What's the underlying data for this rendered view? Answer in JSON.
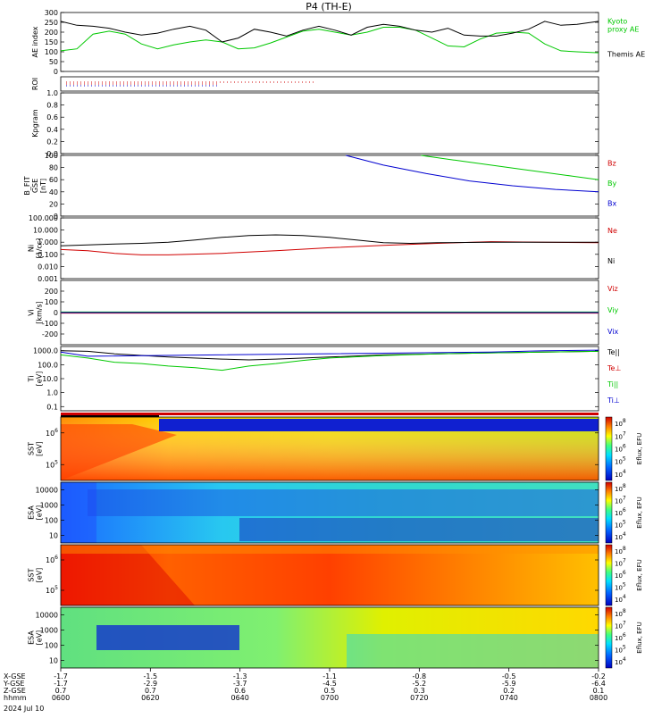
{
  "title": "P4 (TH-E)",
  "date": "2024 Jul 10",
  "colorbar_unit": "Eflux, EFU",
  "chart_data": {
    "type": "line",
    "x_time_ticks": [
      "0600",
      "0620",
      "0640",
      "0700",
      "0720",
      "0740",
      "0800"
    ],
    "ephemeris": {
      "labels": [
        "X-GSE",
        "Y-GSE",
        "Z-GSE",
        "hhmm"
      ],
      "x_gse": [
        "-1.7",
        "-1.5",
        "-1.3",
        "-1.1",
        "-0.8",
        "-0.5",
        "-0.2"
      ],
      "y_gse": [
        "-1.7",
        "-2.9",
        "-3.7",
        "-4.5",
        "-5.2",
        "-5.9",
        "-6.4"
      ],
      "z_gse": [
        "0.7",
        "0.7",
        "0.6",
        "0.5",
        "0.3",
        "0.2",
        "0.1"
      ]
    },
    "panels": [
      {
        "id": "ae",
        "ylabel": "AE index",
        "ylim": [
          0,
          300
        ],
        "ticks": [
          "0",
          "50",
          "100",
          "150",
          "200",
          "250",
          "300"
        ],
        "series": [
          {
            "name": "Kyoto proxy AE",
            "name_lines": [
              "Kyoto",
              "proxy AE"
            ],
            "color": "#00c800",
            "t": [
              0,
              0.03,
              0.06,
              0.09,
              0.12,
              0.15,
              0.18,
              0.21,
              0.24,
              0.27,
              0.3,
              0.33,
              0.36,
              0.39,
              0.42,
              0.45,
              0.48,
              0.51,
              0.54,
              0.57,
              0.6,
              0.63,
              0.66,
              0.69,
              0.72,
              0.75,
              0.78,
              0.81,
              0.84,
              0.87,
              0.9,
              0.93,
              0.96,
              1.0
            ],
            "v": [
              105,
              115,
              190,
              205,
              190,
              140,
              115,
              135,
              150,
              160,
              150,
              115,
              120,
              145,
              175,
              205,
              215,
              200,
              185,
              200,
              225,
              225,
              210,
              170,
              130,
              125,
              165,
              195,
              200,
              195,
              140,
              105,
              100,
              95
            ]
          },
          {
            "name": "Themis AE",
            "color": "#000000",
            "t": [
              0,
              0.03,
              0.06,
              0.09,
              0.12,
              0.15,
              0.18,
              0.21,
              0.24,
              0.27,
              0.3,
              0.33,
              0.36,
              0.39,
              0.42,
              0.45,
              0.48,
              0.51,
              0.54,
              0.57,
              0.6,
              0.63,
              0.66,
              0.69,
              0.72,
              0.75,
              0.78,
              0.81,
              0.84,
              0.87,
              0.9,
              0.93,
              0.96,
              1.0
            ],
            "v": [
              255,
              235,
              230,
              220,
              200,
              185,
              195,
              215,
              230,
              210,
              150,
              170,
              215,
              200,
              180,
              210,
              230,
              210,
              185,
              225,
              240,
              230,
              210,
              200,
              220,
              185,
              180,
              180,
              195,
              215,
              255,
              235,
              240,
              255
            ]
          }
        ]
      },
      {
        "id": "roi",
        "ylabel": "ROI"
      },
      {
        "id": "kp",
        "ylabel": "Kpgram",
        "ylim": [
          0,
          1
        ],
        "ticks": [
          "0.0",
          "0.2",
          "0.4",
          "0.6",
          "0.8",
          "1.0"
        ]
      },
      {
        "id": "bfit",
        "ylabel_lines": [
          "B_FIT",
          "GSE",
          "[nT]"
        ],
        "ylim": [
          0,
          100
        ],
        "ticks": [
          "0",
          "20",
          "40",
          "60",
          "80",
          "100"
        ],
        "series": [
          {
            "name": "Bz",
            "color": "#d00000",
            "t": [],
            "v": []
          },
          {
            "name": "By",
            "color": "#00c800",
            "t": [
              0.67,
              0.75,
              0.85,
              0.95,
              1.0
            ],
            "v": [
              100,
              90,
              78,
              66,
              60
            ]
          },
          {
            "name": "Bx",
            "color": "#0000d0",
            "t": [
              0.53,
              0.6,
              0.68,
              0.76,
              0.84,
              0.92,
              1.0
            ],
            "v": [
              100,
              84,
              70,
              58,
              50,
              44,
              40
            ]
          }
        ]
      },
      {
        "id": "ni",
        "ylabel_lines": [
          "Ni",
          "[1/cc]"
        ],
        "log": true,
        "ylim": [
          0.001,
          100
        ],
        "ticks": [
          "0.001",
          "0.010",
          "0.100",
          "1.000",
          "10.000",
          "100.000"
        ],
        "series": [
          {
            "name": "Ne",
            "color": "#d00000",
            "t": [
              0,
              0.05,
              0.1,
              0.15,
              0.2,
              0.3,
              0.4,
              0.5,
              0.6,
              0.7,
              0.8,
              0.9,
              1.0
            ],
            "v": [
              0.25,
              0.2,
              0.12,
              0.09,
              0.09,
              0.12,
              0.2,
              0.35,
              0.55,
              0.8,
              1.1,
              1.0,
              0.9
            ]
          },
          {
            "name": "Ni",
            "color": "#000000",
            "t": [
              0,
              0.05,
              0.1,
              0.15,
              0.2,
              0.25,
              0.3,
              0.35,
              0.4,
              0.45,
              0.5,
              0.55,
              0.6,
              0.65,
              0.7,
              0.8,
              0.9,
              1.0
            ],
            "v": [
              0.5,
              0.6,
              0.7,
              0.8,
              1.0,
              1.5,
              2.5,
              3.5,
              4.0,
              3.5,
              2.5,
              1.5,
              0.9,
              0.8,
              0.9,
              1.0,
              1.0,
              1.0
            ]
          }
        ]
      },
      {
        "id": "vi",
        "ylabel_lines": [
          "Vi",
          "[km/s]"
        ],
        "ylim": [
          -300,
          300
        ],
        "ticks": [
          "-200",
          "-100",
          "0",
          "100",
          "200"
        ],
        "series": [
          {
            "name": "Viz",
            "color": "#d00000",
            "t": [
              0,
              1
            ],
            "v": [
              -5,
              -5
            ]
          },
          {
            "name": "Viy",
            "color": "#00c800",
            "t": [
              0,
              1
            ],
            "v": [
              5,
              5
            ]
          },
          {
            "name": "Vix",
            "color": "#0000d0",
            "t": [
              0,
              1
            ],
            "v": [
              0,
              0
            ]
          }
        ]
      },
      {
        "id": "ti",
        "ylabel_lines": [
          "Ti",
          "[eV]"
        ],
        "log": true,
        "ylim": [
          0.05,
          2000
        ],
        "ticks": [
          "0.1",
          "1.0",
          "10.0",
          "100.0",
          "1000.0"
        ],
        "series": [
          {
            "name": "Te||",
            "label": "Te||",
            "color": "#000000",
            "t": [
              0,
              0.05,
              0.1,
              0.2,
              0.3,
              0.35,
              0.4,
              0.5,
              0.6,
              0.7,
              0.8,
              0.9,
              1.0
            ],
            "v": [
              1000,
              900,
              600,
              350,
              250,
              220,
              250,
              350,
              500,
              600,
              700,
              800,
              900
            ]
          },
          {
            "name": "Te⊥",
            "label": "Te⊥",
            "color": "#d00000",
            "t": [],
            "v": []
          },
          {
            "name": "Ti||",
            "label": "Ti||",
            "color": "#00c800",
            "t": [
              0,
              0.05,
              0.1,
              0.15,
              0.2,
              0.25,
              0.3,
              0.35,
              0.4,
              0.45,
              0.5,
              0.6,
              0.7,
              0.8,
              0.9,
              1.0
            ],
            "v": [
              500,
              300,
              150,
              120,
              80,
              60,
              40,
              80,
              120,
              200,
              300,
              450,
              600,
              700,
              800,
              900
            ]
          },
          {
            "name": "Ti⊥",
            "label": "Ti⊥",
            "color": "#0000d0",
            "t": [
              0,
              0.05,
              0.8,
              0.9,
              1.0
            ],
            "v": [
              800,
              400,
              800,
              1000,
              1100
            ]
          }
        ]
      },
      {
        "id": "sst1",
        "ylabel_lines": [
          "SST",
          "[eV]"
        ],
        "type": "heatmap",
        "ticks": [
          "10^5",
          "10^6"
        ],
        "colorbar": [
          "10^4",
          "10^5",
          "10^6",
          "10^7",
          "10^8"
        ]
      },
      {
        "id": "esa1",
        "ylabel_lines": [
          "ESA",
          "[eV]"
        ],
        "type": "heatmap",
        "ticks": [
          "10",
          "100",
          "1000",
          "10000"
        ],
        "colorbar": [
          "10^4",
          "10^5",
          "10^6",
          "10^7",
          "10^8"
        ]
      },
      {
        "id": "sst2",
        "ylabel_lines": [
          "SST",
          "[eV]"
        ],
        "type": "heatmap",
        "ticks": [
          "10^5",
          "10^6"
        ],
        "colorbar": [
          "10^4",
          "10^5",
          "10^6",
          "10^7",
          "10^8"
        ]
      },
      {
        "id": "esa2",
        "ylabel_lines": [
          "ESA",
          "[eV]"
        ],
        "type": "heatmap",
        "ticks": [
          "10",
          "100",
          "1000",
          "10000"
        ],
        "colorbar": [
          "10^4",
          "10^5",
          "10^6",
          "10^7",
          "10^8"
        ]
      }
    ]
  }
}
